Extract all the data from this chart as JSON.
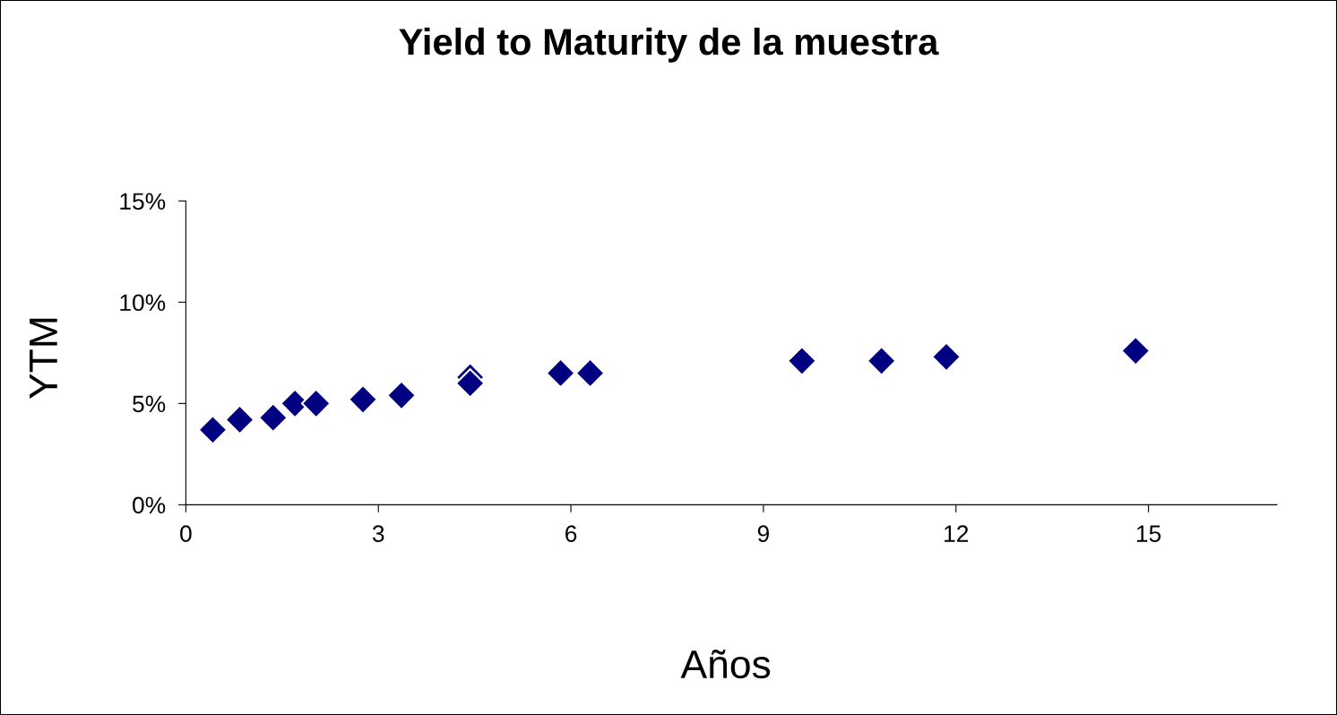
{
  "chart_data": {
    "type": "scatter",
    "title": "Yield to Maturity de la muestra",
    "xlabel": "Años",
    "ylabel": "YTM",
    "x": [
      0.42,
      0.84,
      1.36,
      1.7,
      2.03,
      2.76,
      3.36,
      4.43,
      4.43,
      5.84,
      6.3,
      9.6,
      10.84,
      11.85,
      14.8
    ],
    "series": [
      {
        "color": "#000080",
        "values": [
          3.7,
          4.2,
          4.3,
          5.0,
          5.0,
          5.2,
          5.4,
          6.3,
          6.0,
          6.5,
          6.5,
          7.1,
          7.1,
          7.3,
          7.6
        ]
      }
    ],
    "marker": "diamond",
    "grid": false,
    "legend": false,
    "xlim": [
      0,
      17
    ],
    "xticks": [
      0,
      3,
      6,
      9,
      12,
      15
    ],
    "ylim": [
      0,
      15
    ],
    "yticks": [
      {
        "value": 0,
        "label": "0%"
      },
      {
        "value": 5,
        "label": "5%"
      },
      {
        "value": 10,
        "label": "10%"
      },
      {
        "value": 15,
        "label": "15%"
      }
    ]
  }
}
